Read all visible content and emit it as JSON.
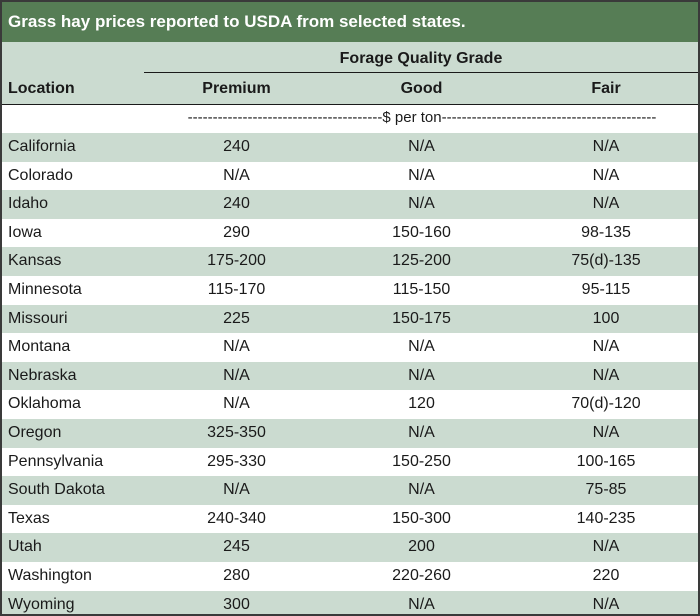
{
  "title": "Grass hay prices reported to USDA from selected states.",
  "super_header": "Forage Quality Grade",
  "columns": {
    "location": "Location",
    "premium": "Premium",
    "good": "Good",
    "fair": "Fair"
  },
  "units": "---------------------------------------$ per ton-------------------------------------------",
  "colors": {
    "title_bg": "#567d55",
    "shade": "#cbdbd0"
  },
  "rows": [
    {
      "location": "California",
      "premium": "240",
      "good": "N/A",
      "fair": "N/A"
    },
    {
      "location": "Colorado",
      "premium": "N/A",
      "good": "N/A",
      "fair": "N/A"
    },
    {
      "location": "Idaho",
      "premium": "240",
      "good": "N/A",
      "fair": "N/A"
    },
    {
      "location": "Iowa",
      "premium": "290",
      "good": "150-160",
      "fair": "98-135"
    },
    {
      "location": "Kansas",
      "premium": "175-200",
      "good": "125-200",
      "fair": "75(d)-135"
    },
    {
      "location": "Minnesota",
      "premium": "115-170",
      "good": "115-150",
      "fair": "95-115"
    },
    {
      "location": "Missouri",
      "premium": "225",
      "good": "150-175",
      "fair": "100"
    },
    {
      "location": "Montana",
      "premium": "N/A",
      "good": "N/A",
      "fair": "N/A"
    },
    {
      "location": "Nebraska",
      "premium": "N/A",
      "good": "N/A",
      "fair": "N/A"
    },
    {
      "location": "Oklahoma",
      "premium": "N/A",
      "good": "120",
      "fair": "70(d)-120"
    },
    {
      "location": "Oregon",
      "premium": "325-350",
      "good": "N/A",
      "fair": "N/A"
    },
    {
      "location": "Pennsylvania",
      "premium": "295-330",
      "good": "150-250",
      "fair": "100-165"
    },
    {
      "location": "South Dakota",
      "premium": "N/A",
      "good": "N/A",
      "fair": "75-85"
    },
    {
      "location": "Texas",
      "premium": "240-340",
      "good": "150-300",
      "fair": "140-235"
    },
    {
      "location": "Utah",
      "premium": "245",
      "good": "200",
      "fair": "N/A"
    },
    {
      "location": "Washington",
      "premium": "280",
      "good": "220-260",
      "fair": "220"
    },
    {
      "location": "Wyoming",
      "premium": "300",
      "good": "N/A",
      "fair": "N/A"
    }
  ]
}
